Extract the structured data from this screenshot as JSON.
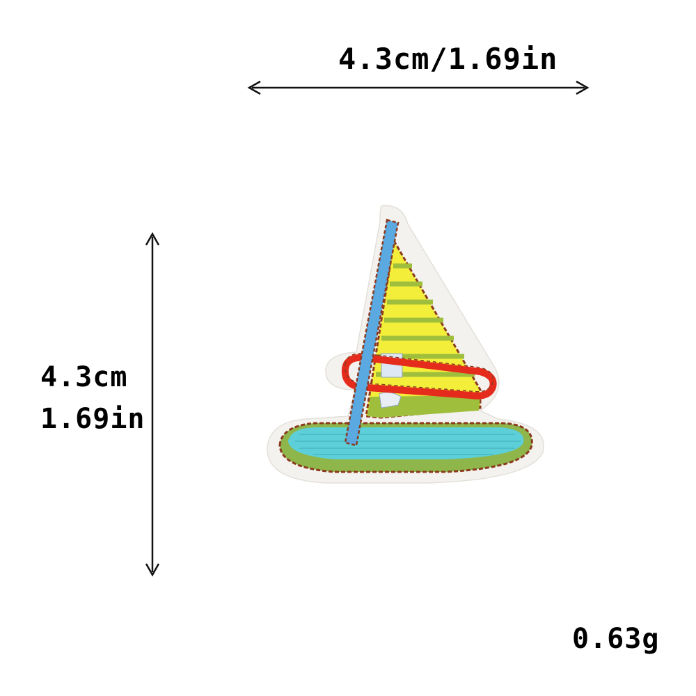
{
  "dimensions": {
    "width_label": "4.3cm/1.69in",
    "height_cm": "4.3cm",
    "height_in": "1.69in"
  },
  "weight": "0.63g",
  "colors": {
    "outline_thread": "#8b3a1e",
    "sail_yellow": "#f2ee3a",
    "sail_green": "#9fbf3c",
    "mast_blue": "#5aa9e0",
    "band_red": "#e52b1c",
    "water_cyan": "#5ccfd8",
    "hull_green": "#8fb64b",
    "patch_backing": "#f4f2ee",
    "window_light": "#dde8f4"
  },
  "icons": {
    "horizontal": "double-arrow-horizontal-icon",
    "vertical": "double-arrow-vertical-icon",
    "patch": "sailboat-patch-icon"
  }
}
